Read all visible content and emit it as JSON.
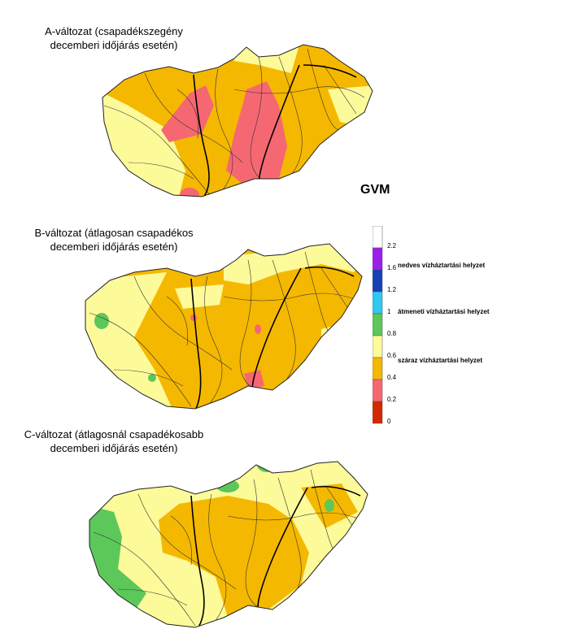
{
  "maps": [
    {
      "caption1": "A-változat (csapadékszegény",
      "caption2": "decemberi időjárás esetén)"
    },
    {
      "caption1": "B-változat (átlagosan csapadékos",
      "caption2": "decemberi időjárás esetén)"
    },
    {
      "caption1": "C-változat (átlagosnál csapadékosabb",
      "caption2": "decemberi időjárás esetén)"
    }
  ],
  "legend": {
    "title": "GVM",
    "ticks": [
      "2.2",
      "1.6",
      "1.2",
      "1",
      "0.8",
      "0.6",
      "0.4",
      "0.2",
      "0"
    ],
    "categories": [
      "nedves vízháztartási helyzet",
      "átmeneti vízháztartási helyzet",
      "száraz vízháztartási helyzet"
    ],
    "colors": [
      "#ffffff",
      "#9b1fe8",
      "#1740b5",
      "#2ec8f0",
      "#5cc85a",
      "#fdfa9a",
      "#f5b800",
      "#f56872",
      "#d42800"
    ]
  }
}
